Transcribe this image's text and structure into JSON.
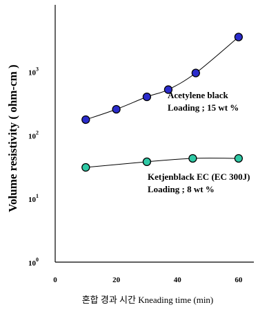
{
  "chart_data": {
    "type": "scatter",
    "title": "",
    "xlabel": "혼합 경과 시간 Kneading time (min)",
    "ylabel": "Volume resistivity ( ohm-cm )",
    "xlim": [
      0,
      65
    ],
    "ylim": [
      1,
      6000
    ],
    "y_scale": "log",
    "grid": false,
    "xticks": [
      "0",
      "20",
      "40",
      "60"
    ],
    "xtick_values": [
      0,
      20,
      40,
      60
    ],
    "yticks": [
      {
        "value": 1,
        "base": "10",
        "exp": "0"
      },
      {
        "value": 10,
        "base": "10",
        "exp": "1"
      },
      {
        "value": 100,
        "base": "10",
        "exp": "2"
      },
      {
        "value": 1000,
        "base": "10",
        "exp": "3"
      }
    ],
    "series": [
      {
        "color": "#2b2ccc",
        "annotation": [
          "Acetylene black",
          "Loading ; 15 wt %"
        ],
        "x": [
          10,
          20,
          30,
          37,
          46,
          60
        ],
        "y": [
          175,
          255,
          400,
          520,
          950,
          3500
        ]
      },
      {
        "color": "#2fc9a5",
        "annotation": [
          "Ketjenblack EC (EC 300J)",
          "Loading ; 8 wt %"
        ],
        "x": [
          10,
          30,
          45,
          60
        ],
        "y": [
          31,
          38,
          43,
          43
        ]
      }
    ]
  }
}
